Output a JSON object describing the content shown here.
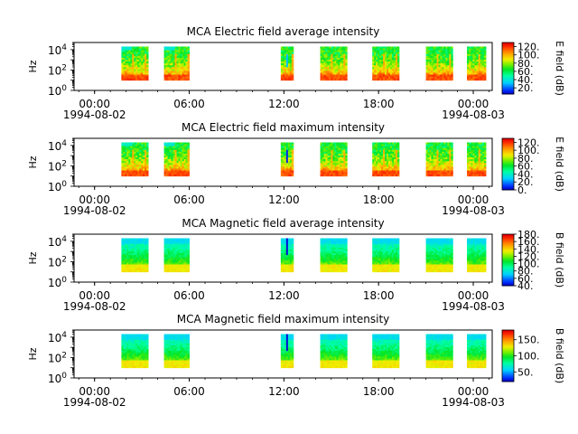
{
  "chart_data": [
    {
      "type": "heatmap",
      "title": "MCA  Electric field average intensity",
      "ylabel": "Hz",
      "y_scale": "log",
      "y_ticks": [
        {
          "exp": "0",
          "value": 1
        },
        {
          "exp": "2",
          "value": 100
        },
        {
          "exp": "4",
          "value": 10000
        }
      ],
      "x_ticks": [
        "00:00",
        "06:00",
        "12:00",
        "18:00",
        "00:00"
      ],
      "x_hours": [
        0,
        6,
        12,
        18,
        24
      ],
      "date_start": "1994-08-02",
      "date_end": "1994-08-03",
      "colorbar_label": "E field (dB)",
      "colorbar_ticks": [
        "20.",
        "40.",
        "60.",
        "80.",
        "100.",
        "120."
      ],
      "colorbar_values": [
        20,
        40,
        60,
        80,
        100,
        120
      ],
      "colorbar_range": [
        5,
        130
      ],
      "colormap": "rainbow",
      "data_blocks_hours": [
        [
          1.7,
          3.4
        ],
        [
          4.4,
          6.0
        ],
        [
          11.8,
          12.6
        ],
        [
          14.3,
          16.0
        ],
        [
          17.6,
          19.3
        ],
        [
          21.0,
          22.7
        ],
        [
          23.6,
          24.8
        ]
      ],
      "freq_range_hz": [
        10,
        20000
      ],
      "intensity_pattern": "strong"
    },
    {
      "type": "heatmap",
      "title": "MCA  Electric field maximum intensity",
      "ylabel": "Hz",
      "y_scale": "log",
      "y_ticks": [
        {
          "exp": "0",
          "value": 1
        },
        {
          "exp": "2",
          "value": 100
        },
        {
          "exp": "4",
          "value": 10000
        }
      ],
      "x_ticks": [
        "00:00",
        "06:00",
        "12:00",
        "18:00",
        "00:00"
      ],
      "x_hours": [
        0,
        6,
        12,
        18,
        24
      ],
      "date_start": "1994-08-02",
      "date_end": "1994-08-03",
      "colorbar_label": "E field (dB)",
      "colorbar_ticks": [
        "0.",
        "20.",
        "40.",
        "60.",
        "80.",
        "100.",
        "120."
      ],
      "colorbar_values": [
        0,
        20,
        40,
        60,
        80,
        100,
        120
      ],
      "colorbar_range": [
        0,
        130
      ],
      "colormap": "rainbow",
      "data_blocks_hours": [
        [
          1.7,
          3.4
        ],
        [
          4.4,
          6.0
        ],
        [
          11.8,
          12.6
        ],
        [
          14.3,
          16.0
        ],
        [
          17.6,
          19.3
        ],
        [
          21.0,
          22.7
        ],
        [
          23.6,
          24.8
        ]
      ],
      "freq_range_hz": [
        10,
        20000
      ],
      "intensity_pattern": "strong"
    },
    {
      "type": "heatmap",
      "title": "MCA  Magnetic field average intensity",
      "ylabel": "Hz",
      "y_scale": "log",
      "y_ticks": [
        {
          "exp": "0",
          "value": 1
        },
        {
          "exp": "2",
          "value": 100
        },
        {
          "exp": "4",
          "value": 10000
        }
      ],
      "x_ticks": [
        "00:00",
        "06:00",
        "12:00",
        "18:00",
        "00:00"
      ],
      "x_hours": [
        0,
        6,
        12,
        18,
        24
      ],
      "date_start": "1994-08-02",
      "date_end": "1994-08-03",
      "colorbar_label": "B field (dB)",
      "colorbar_ticks": [
        "40.",
        "60.",
        "80.",
        "100.",
        "120.",
        "140.",
        "160.",
        "180."
      ],
      "colorbar_values": [
        40,
        60,
        80,
        100,
        120,
        140,
        160,
        180
      ],
      "colorbar_range": [
        40,
        180
      ],
      "colormap": "rainbow",
      "data_blocks_hours": [
        [
          1.7,
          3.4
        ],
        [
          4.4,
          6.0
        ],
        [
          11.8,
          12.6
        ],
        [
          14.3,
          16.0
        ],
        [
          17.6,
          19.3
        ],
        [
          21.0,
          22.7
        ],
        [
          23.6,
          24.8
        ]
      ],
      "freq_range_hz": [
        10,
        20000
      ],
      "intensity_pattern": "magnetic"
    },
    {
      "type": "heatmap",
      "title": "MCA  Magnetic field maximum intensity",
      "ylabel": "Hz",
      "y_scale": "log",
      "y_ticks": [
        {
          "exp": "0",
          "value": 1
        },
        {
          "exp": "2",
          "value": 100
        },
        {
          "exp": "4",
          "value": 10000
        }
      ],
      "x_ticks": [
        "00:00",
        "06:00",
        "12:00",
        "18:00",
        "00:00"
      ],
      "x_hours": [
        0,
        6,
        12,
        18,
        24
      ],
      "date_start": "1994-08-02",
      "date_end": "1994-08-03",
      "colorbar_label": "B field (dB)",
      "colorbar_ticks": [
        "50.",
        "100.",
        "150."
      ],
      "colorbar_values": [
        50,
        100,
        150
      ],
      "colorbar_range": [
        20,
        180
      ],
      "colormap": "rainbow",
      "data_blocks_hours": [
        [
          1.7,
          3.4
        ],
        [
          4.4,
          6.0
        ],
        [
          11.8,
          12.6
        ],
        [
          14.3,
          16.0
        ],
        [
          17.6,
          19.3
        ],
        [
          21.0,
          22.7
        ],
        [
          23.6,
          24.8
        ]
      ],
      "freq_range_hz": [
        10,
        20000
      ],
      "intensity_pattern": "magnetic"
    }
  ]
}
